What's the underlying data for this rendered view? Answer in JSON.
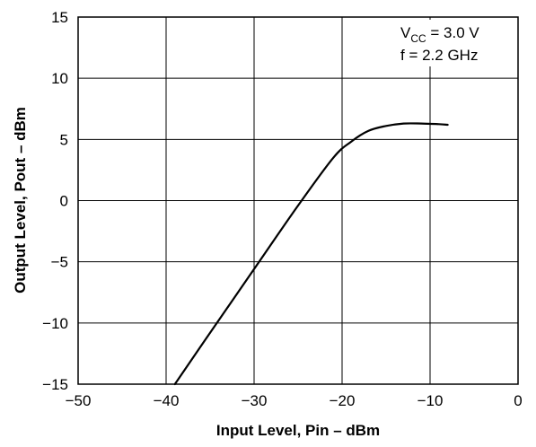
{
  "chart_data": {
    "type": "line",
    "xlabel": "Input Level, Pin – dBm",
    "ylabel": "Output Level, Pout – dBm",
    "xlim": [
      -50,
      0
    ],
    "ylim": [
      -15,
      15
    ],
    "x_ticks": [
      "−50",
      "−40",
      "−30",
      "−20",
      "−10",
      "0"
    ],
    "y_ticks": [
      "15",
      "10",
      "5",
      "0",
      "−5",
      "−10",
      "−15"
    ],
    "grid": true,
    "annotation": {
      "vcc_prefix": "V",
      "vcc_sub": "CC",
      "vcc_value": " = 3.0 V",
      "freq": "f = 2.2 GHz"
    },
    "series": [
      {
        "x": [
          -39,
          -35,
          -30,
          -25,
          -21,
          -19,
          -17,
          -15,
          -13,
          -11,
          -9,
          -8
        ],
        "y": [
          -15,
          -10.8,
          -5.6,
          -0.4,
          3.5,
          4.8,
          5.7,
          6.1,
          6.3,
          6.3,
          6.25,
          6.2
        ]
      }
    ]
  }
}
